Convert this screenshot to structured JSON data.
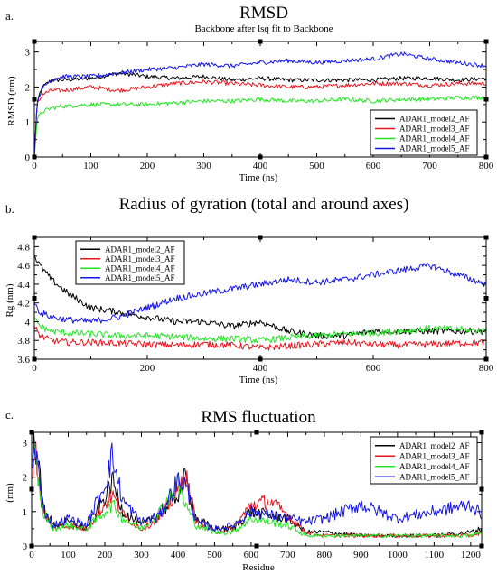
{
  "panels": [
    {
      "letter": "a.",
      "title": "RMSD",
      "subtitle": "Backbone after lsq fit to Backbone",
      "xlabel": "Time (ns)",
      "ylabel": "RMSD (nm)"
    },
    {
      "letter": "b.",
      "title": "Radius of gyration (total and around axes)",
      "subtitle": "",
      "xlabel": "Time (ns)",
      "ylabel": "Rg (nm)"
    },
    {
      "letter": "c.",
      "title": "RMS fluctuation",
      "subtitle": "",
      "xlabel": "Residue",
      "ylabel": "(nm)"
    }
  ],
  "colors": {
    "model2": "#000000",
    "model3": "#e8141e",
    "model4": "#22e622",
    "model5": "#1414e6"
  },
  "chart_data": [
    {
      "type": "line",
      "title": "RMSD",
      "subtitle": "Backbone after lsq fit to Backbone",
      "xlabel": "Time (ns)",
      "ylabel": "RMSD (nm)",
      "xlim": [
        0,
        800
      ],
      "ylim": [
        0,
        3.3
      ],
      "xticks": [
        0,
        100,
        200,
        300,
        400,
        500,
        600,
        700,
        800
      ],
      "yticks": [
        0,
        1,
        2,
        3
      ],
      "legend_position": "bottom-right",
      "series": [
        {
          "name": "ADAR1_model2_AF",
          "color": "#000000",
          "x": [
            0,
            5,
            15,
            30,
            50,
            100,
            150,
            200,
            250,
            300,
            350,
            400,
            450,
            500,
            550,
            600,
            650,
            700,
            750,
            800
          ],
          "y": [
            0,
            1.6,
            2.0,
            2.2,
            2.2,
            2.25,
            2.4,
            2.3,
            2.25,
            2.3,
            2.2,
            2.25,
            2.2,
            2.2,
            2.2,
            2.2,
            2.25,
            2.25,
            2.2,
            2.25
          ]
        },
        {
          "name": "ADAR1_model3_AF",
          "color": "#e8141e",
          "x": [
            0,
            5,
            15,
            30,
            50,
            100,
            150,
            200,
            250,
            300,
            350,
            400,
            450,
            500,
            550,
            600,
            650,
            700,
            750,
            800
          ],
          "y": [
            0,
            1.5,
            1.8,
            1.9,
            1.9,
            2.0,
            1.9,
            2.0,
            2.1,
            2.15,
            2.1,
            2.05,
            2.0,
            2.0,
            2.05,
            2.1,
            2.1,
            2.05,
            2.1,
            2.1
          ]
        },
        {
          "name": "ADAR1_model4_AF",
          "color": "#22e622",
          "x": [
            0,
            5,
            15,
            30,
            50,
            100,
            150,
            200,
            250,
            300,
            350,
            400,
            450,
            500,
            550,
            600,
            650,
            700,
            750,
            800
          ],
          "y": [
            0,
            1.1,
            1.3,
            1.4,
            1.45,
            1.5,
            1.5,
            1.5,
            1.55,
            1.6,
            1.6,
            1.65,
            1.6,
            1.6,
            1.65,
            1.6,
            1.65,
            1.65,
            1.7,
            1.7
          ]
        },
        {
          "name": "ADAR1_model5_AF",
          "color": "#1414e6",
          "x": [
            0,
            5,
            15,
            30,
            50,
            100,
            150,
            200,
            250,
            300,
            350,
            400,
            450,
            500,
            550,
            600,
            650,
            700,
            750,
            800
          ],
          "y": [
            0,
            1.6,
            2.0,
            2.2,
            2.3,
            2.3,
            2.4,
            2.5,
            2.55,
            2.65,
            2.6,
            2.7,
            2.75,
            2.7,
            2.75,
            2.8,
            2.95,
            2.8,
            2.7,
            2.6
          ]
        }
      ]
    },
    {
      "type": "line",
      "title": "Radius of gyration (total and around axes)",
      "xlabel": "Time (ns)",
      "ylabel": "Rg (nm)",
      "xlim": [
        0,
        800
      ],
      "ylim": [
        3.6,
        4.9
      ],
      "xticks": [
        0,
        200,
        400,
        600,
        800
      ],
      "yticks": [
        3.6,
        3.8,
        4.0,
        4.2,
        4.4,
        4.6,
        4.8
      ],
      "legend_position": "top-left",
      "series": [
        {
          "name": "ADAR1_model2_AF",
          "color": "#000000",
          "x": [
            0,
            10,
            30,
            60,
            100,
            150,
            200,
            250,
            300,
            350,
            400,
            450,
            500,
            550,
            600,
            650,
            700,
            750,
            800
          ],
          "y": [
            4.7,
            4.6,
            4.45,
            4.3,
            4.15,
            4.1,
            4.05,
            4.0,
            4.0,
            3.95,
            4.0,
            3.9,
            3.85,
            3.85,
            3.9,
            3.9,
            3.9,
            3.9,
            3.9
          ]
        },
        {
          "name": "ADAR1_model3_AF",
          "color": "#e8141e",
          "x": [
            0,
            10,
            30,
            60,
            100,
            150,
            200,
            250,
            300,
            350,
            400,
            450,
            500,
            550,
            600,
            650,
            700,
            750,
            800
          ],
          "y": [
            3.95,
            3.85,
            3.8,
            3.78,
            3.78,
            3.77,
            3.76,
            3.75,
            3.76,
            3.75,
            3.72,
            3.74,
            3.76,
            3.78,
            3.76,
            3.75,
            3.76,
            3.77,
            3.78
          ]
        },
        {
          "name": "ADAR1_model4_AF",
          "color": "#22e622",
          "x": [
            0,
            10,
            30,
            60,
            100,
            150,
            200,
            250,
            300,
            350,
            400,
            450,
            500,
            550,
            600,
            650,
            700,
            750,
            800
          ],
          "y": [
            4.05,
            3.95,
            3.9,
            3.88,
            3.87,
            3.85,
            3.85,
            3.84,
            3.82,
            3.82,
            3.8,
            3.83,
            3.85,
            3.87,
            3.88,
            3.9,
            3.93,
            3.92,
            3.9
          ]
        },
        {
          "name": "ADAR1_model5_AF",
          "color": "#1414e6",
          "x": [
            0,
            10,
            30,
            60,
            100,
            150,
            200,
            250,
            300,
            350,
            400,
            450,
            500,
            550,
            600,
            650,
            700,
            750,
            800
          ],
          "y": [
            4.2,
            4.1,
            4.05,
            4.02,
            4.0,
            4.05,
            4.15,
            4.25,
            4.3,
            4.35,
            4.4,
            4.45,
            4.42,
            4.45,
            4.5,
            4.55,
            4.6,
            4.5,
            4.4
          ]
        }
      ]
    },
    {
      "type": "line",
      "title": "RMS fluctuation",
      "xlabel": "Residue",
      "ylabel": "(nm)",
      "xlim": [
        0,
        1230
      ],
      "ylim": [
        0,
        3.3
      ],
      "xticks": [
        0,
        100,
        200,
        300,
        400,
        500,
        600,
        700,
        800,
        900,
        1000,
        1100,
        1200
      ],
      "yticks": [
        0,
        1,
        2,
        3
      ],
      "legend_position": "top-right",
      "series": [
        {
          "name": "ADAR1_model2_AF",
          "color": "#000000",
          "x": [
            0,
            10,
            30,
            60,
            100,
            150,
            200,
            220,
            250,
            300,
            350,
            400,
            420,
            450,
            500,
            550,
            600,
            650,
            700,
            750,
            800,
            900,
            1000,
            1100,
            1200,
            1230
          ],
          "y": [
            2.5,
            3.2,
            1.2,
            0.6,
            0.7,
            0.5,
            1.4,
            1.9,
            1.0,
            0.6,
            0.9,
            1.5,
            2.0,
            0.8,
            0.5,
            0.5,
            1.0,
            0.9,
            0.8,
            0.4,
            0.4,
            0.3,
            0.3,
            0.3,
            0.4,
            0.5
          ]
        },
        {
          "name": "ADAR1_model3_AF",
          "color": "#e8141e",
          "x": [
            0,
            10,
            30,
            60,
            100,
            150,
            200,
            220,
            250,
            300,
            350,
            400,
            420,
            450,
            500,
            550,
            600,
            650,
            700,
            750,
            800,
            900,
            1000,
            1100,
            1200,
            1230
          ],
          "y": [
            2.0,
            2.8,
            1.0,
            0.5,
            0.6,
            0.5,
            1.2,
            1.5,
            0.9,
            0.5,
            0.8,
            1.6,
            2.1,
            0.7,
            0.4,
            0.5,
            1.2,
            1.3,
            0.9,
            0.4,
            0.3,
            0.3,
            0.3,
            0.3,
            0.3,
            0.4
          ]
        },
        {
          "name": "ADAR1_model4_AF",
          "color": "#22e622",
          "x": [
            0,
            10,
            30,
            60,
            100,
            150,
            200,
            220,
            250,
            300,
            350,
            400,
            420,
            450,
            500,
            550,
            600,
            650,
            700,
            750,
            800,
            900,
            1000,
            1100,
            1200,
            1230
          ],
          "y": [
            2.2,
            2.6,
            1.0,
            0.5,
            0.6,
            0.5,
            1.0,
            1.2,
            0.8,
            0.5,
            1.0,
            1.8,
            1.2,
            0.6,
            0.4,
            0.4,
            0.8,
            0.7,
            0.6,
            0.3,
            0.3,
            0.3,
            0.3,
            0.3,
            0.3,
            0.4
          ]
        },
        {
          "name": "ADAR1_model5_AF",
          "color": "#1414e6",
          "x": [
            0,
            10,
            30,
            60,
            100,
            150,
            200,
            220,
            250,
            300,
            350,
            400,
            420,
            450,
            500,
            550,
            600,
            650,
            700,
            750,
            800,
            900,
            1000,
            1100,
            1200,
            1230
          ],
          "y": [
            2.3,
            3.0,
            1.1,
            0.6,
            0.8,
            0.6,
            1.8,
            2.6,
            1.3,
            0.7,
            0.9,
            1.9,
            1.8,
            0.7,
            0.5,
            0.6,
            1.0,
            0.9,
            0.8,
            0.7,
            0.8,
            1.2,
            0.8,
            1.0,
            1.2,
            0.9
          ]
        }
      ]
    }
  ]
}
